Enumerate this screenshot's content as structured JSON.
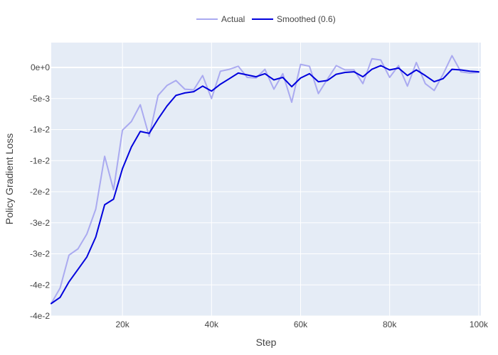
{
  "chart_data": {
    "type": "line",
    "title": "",
    "xlabel": "Step",
    "ylabel": "Policy Gradient Loss",
    "xlim": [
      4000,
      100500
    ],
    "ylim": [
      -0.04,
      0.004
    ],
    "x_ticks": [
      {
        "value": 20000,
        "label": "20k"
      },
      {
        "value": 40000,
        "label": "40k"
      },
      {
        "value": 60000,
        "label": "60k"
      },
      {
        "value": 80000,
        "label": "80k"
      },
      {
        "value": 100000,
        "label": "100k"
      }
    ],
    "y_ticks": [
      {
        "value": 0,
        "label": "0e+0"
      },
      {
        "value": -0.005,
        "label": "-5e-3"
      },
      {
        "value": -0.01,
        "label": "-1e-2"
      },
      {
        "value": -0.015,
        "label": "-1e-2"
      },
      {
        "value": -0.02,
        "label": "-2e-2"
      },
      {
        "value": -0.025,
        "label": "-3e-2"
      },
      {
        "value": -0.03,
        "label": "-3e-2"
      },
      {
        "value": -0.035,
        "label": "-4e-2"
      },
      {
        "value": -0.04,
        "label": "-4e-2"
      }
    ],
    "grid": true,
    "legend_position": "top-center",
    "colors": {
      "plot_background": "#e5ecf6",
      "grid": "#ffffff",
      "actual": "#aaaaf0",
      "smoothed": "#0000dd"
    },
    "series": [
      {
        "name": "Actual",
        "x": [
          4000,
          6000,
          8000,
          10000,
          12000,
          14000,
          16000,
          18000,
          20000,
          22000,
          24000,
          26000,
          28000,
          30000,
          32000,
          34000,
          36000,
          38000,
          40000,
          42000,
          44000,
          46000,
          48000,
          50000,
          52000,
          54000,
          56000,
          58000,
          60000,
          62000,
          64000,
          66000,
          68000,
          70000,
          72000,
          74000,
          76000,
          78000,
          80000,
          82000,
          84000,
          86000,
          88000,
          90000,
          92000,
          94000,
          96000,
          98000,
          100000
        ],
        "values": [
          -0.038,
          -0.0355,
          -0.0302,
          -0.0292,
          -0.0268,
          -0.0228,
          -0.0143,
          -0.0197,
          -0.0101,
          -0.0087,
          -0.006,
          -0.0111,
          -0.0045,
          -0.0029,
          -0.0021,
          -0.0035,
          -0.0036,
          -0.0013,
          -0.005,
          -0.0006,
          -0.0003,
          0.0002,
          -0.0016,
          -0.0017,
          -0.0003,
          -0.0035,
          -0.001,
          -0.0056,
          0.0005,
          0.0002,
          -0.0042,
          -0.0019,
          0.0003,
          -0.0004,
          -0.0004,
          -0.0026,
          0.0014,
          0.0012,
          -0.0016,
          0.0003,
          -0.003,
          0.0008,
          -0.0026,
          -0.0037,
          -0.0011,
          0.0019,
          -0.0007,
          -0.0009,
          -0.0008
        ]
      },
      {
        "name": "Smoothed (0.6)",
        "x": [
          4000,
          6000,
          8000,
          10000,
          12000,
          14000,
          16000,
          18000,
          20000,
          22000,
          24000,
          26000,
          28000,
          30000,
          32000,
          34000,
          36000,
          38000,
          40000,
          42000,
          44000,
          46000,
          48000,
          50000,
          52000,
          54000,
          56000,
          58000,
          60000,
          62000,
          64000,
          66000,
          68000,
          70000,
          72000,
          74000,
          76000,
          78000,
          80000,
          82000,
          84000,
          86000,
          88000,
          90000,
          92000,
          94000,
          96000,
          98000,
          100000
        ],
        "values": [
          -0.038,
          -0.037,
          -0.0345,
          -0.0325,
          -0.0305,
          -0.0273,
          -0.0221,
          -0.0212,
          -0.0163,
          -0.0128,
          -0.0103,
          -0.0106,
          -0.0083,
          -0.0062,
          -0.0045,
          -0.0041,
          -0.0039,
          -0.003,
          -0.0038,
          -0.0027,
          -0.0018,
          -0.0009,
          -0.0012,
          -0.0015,
          -0.001,
          -0.002,
          -0.0016,
          -0.0031,
          -0.0017,
          -0.001,
          -0.0023,
          -0.0021,
          -0.0011,
          -0.0008,
          -0.0007,
          -0.0015,
          -0.0003,
          0.0003,
          -0.0004,
          -0.0001,
          -0.0013,
          -0.0004,
          -0.0013,
          -0.0023,
          -0.0018,
          -0.0003,
          -0.0004,
          -0.0006,
          -0.0007
        ]
      }
    ]
  }
}
